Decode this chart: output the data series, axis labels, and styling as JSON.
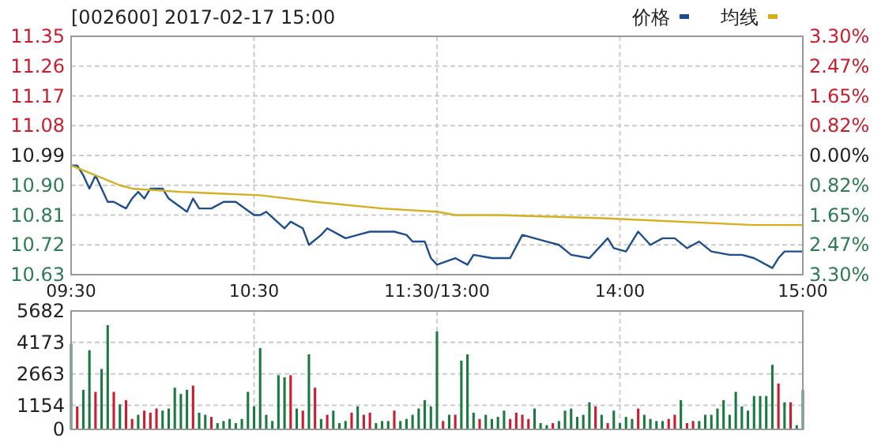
{
  "chart_data": [
    {
      "type": "line",
      "title": "[002600] 2017-02-17 15:00",
      "legend": "top right",
      "grid": true,
      "line_style": "solid",
      "categories": [
        "09:30",
        null,
        null,
        null,
        null,
        null,
        null,
        null,
        null,
        null,
        null,
        null,
        null,
        null,
        null,
        null,
        null,
        null,
        null,
        null,
        null,
        null,
        null,
        null,
        null,
        null,
        null,
        null,
        null,
        null,
        "10:30",
        null,
        null,
        null,
        null,
        null,
        null,
        null,
        null,
        null,
        null,
        null,
        null,
        null,
        null,
        null,
        null,
        null,
        null,
        null,
        null,
        null,
        null,
        null,
        null,
        null,
        null,
        null,
        null,
        null,
        "11:30/13:00",
        null,
        null,
        null,
        null,
        null,
        null,
        null,
        null,
        null,
        null,
        null,
        null,
        null,
        null,
        null,
        null,
        null,
        null,
        null,
        null,
        null,
        null,
        null,
        null,
        null,
        null,
        null,
        null,
        null,
        "14:00",
        null,
        null,
        null,
        null,
        null,
        null,
        null,
        null,
        null,
        null,
        null,
        null,
        null,
        null,
        null,
        null,
        null,
        null,
        null,
        null,
        null,
        null,
        null,
        null,
        null,
        null,
        null,
        null,
        null,
        "15:00"
      ],
      "ylim": [
        10.63,
        11.35
      ],
      "yticks": [
        10.63,
        10.72,
        10.81,
        {
          "value": 10.9,
          "label": "10.90"
        },
        10.99,
        11.08,
        11.17,
        11.26,
        11.35
      ],
      "y2lim": [
        -3.3,
        3.3
      ],
      "y2ticks": [
        {
          "value": -3.3,
          "label": "3.30%"
        },
        {
          "value": -2.47,
          "label": "2.47%"
        },
        {
          "value": -1.65,
          "label": "1.65%"
        },
        {
          "value": -0.82,
          "label": "0.82%"
        },
        {
          "value": 0,
          "label": "0.00%"
        },
        {
          "value": 0.82,
          "label": "0.82%"
        },
        {
          "value": 1.65,
          "label": "1.65%"
        },
        {
          "value": 2.47,
          "label": "2.47%"
        },
        {
          "value": 3.3,
          "label": "3.30%"
        }
      ],
      "series": [
        {
          "name": "价格",
          "color": "#1f4e8c",
          "values": [
            10.96,
            10.96,
            10.93,
            10.89,
            10.93,
            10.89,
            10.85,
            10.85,
            null,
            10.83,
            10.86,
            10.88,
            10.86,
            10.89,
            null,
            10.89,
            10.86,
            null,
            null,
            10.82,
            10.86,
            10.83,
            null,
            10.83,
            null,
            10.85,
            null,
            10.85,
            null,
            null,
            10.81,
            10.81,
            10.82,
            null,
            null,
            10.77,
            10.79,
            null,
            10.77,
            10.72,
            null,
            10.75,
            10.77,
            null,
            10.75,
            10.74,
            null,
            10.75,
            null,
            10.76,
            null,
            null,
            null,
            10.76,
            null,
            10.75,
            10.73,
            null,
            10.73,
            10.68,
            10.66,
            null,
            null,
            10.68,
            null,
            10.66,
            10.69,
            null,
            null,
            10.68,
            null,
            null,
            10.68,
            null,
            10.75,
            null,
            null,
            null,
            10.73,
            null,
            10.72,
            null,
            10.69,
            null,
            null,
            10.68,
            null,
            null,
            10.74,
            10.71,
            null,
            10.7,
            null,
            10.76,
            null,
            10.72,
            null,
            10.74,
            null,
            10.74,
            null,
            10.71,
            null,
            10.73,
            null,
            10.7,
            null,
            null,
            10.69,
            null,
            10.69,
            null,
            10.68,
            null,
            null,
            10.65,
            10.68,
            10.7,
            null,
            null,
            10.7
          ]
        },
        {
          "name": "均线",
          "color": "#d4b020",
          "values": [
            10.96,
            null,
            null,
            null,
            10.93,
            null,
            null,
            null,
            10.9,
            null,
            10.89,
            null,
            null,
            null,
            null,
            null,
            null,
            null,
            10.88,
            null,
            null,
            null,
            null,
            null,
            null,
            null,
            null,
            null,
            null,
            null,
            null,
            10.87,
            null,
            null,
            null,
            null,
            null,
            null,
            null,
            null,
            10.85,
            null,
            null,
            null,
            null,
            null,
            null,
            null,
            null,
            null,
            null,
            10.83,
            null,
            null,
            null,
            null,
            null,
            null,
            null,
            null,
            10.82,
            null,
            null,
            10.81,
            null,
            null,
            null,
            null,
            null,
            null,
            10.81,
            null,
            null,
            null,
            null,
            null,
            null,
            null,
            null,
            null,
            null,
            null,
            null,
            null,
            null,
            null,
            null,
            null,
            10.8,
            null,
            null,
            null,
            null,
            null,
            null,
            null,
            null,
            null,
            null,
            null,
            null,
            null,
            null,
            null,
            null,
            null,
            null,
            null,
            null,
            null,
            null,
            null,
            10.78,
            null,
            null,
            null,
            null,
            null,
            null,
            null,
            10.78
          ]
        }
      ]
    },
    {
      "type": "bar",
      "grid": true,
      "tick_labels": "y",
      "categories": [
        null,
        null,
        null,
        null,
        null,
        null,
        null,
        null,
        null,
        null,
        null,
        null,
        null,
        null,
        null,
        null,
        null,
        null,
        null,
        null,
        null,
        null,
        null,
        null,
        null,
        null,
        null,
        null,
        null,
        null,
        null,
        null,
        null,
        null,
        null,
        null,
        null,
        null,
        null,
        null,
        null,
        null,
        null,
        null,
        null,
        null,
        null,
        null,
        null,
        null,
        null,
        null,
        null,
        null,
        null,
        null,
        null,
        null,
        null,
        null,
        null,
        null,
        null,
        null,
        null,
        null,
        null,
        null,
        null,
        null,
        null,
        null,
        null,
        null,
        null,
        null,
        null,
        null,
        null,
        null,
        null,
        null,
        null,
        null,
        null,
        null,
        null,
        null,
        null,
        null,
        null,
        null,
        null,
        null,
        null,
        null,
        null,
        null,
        null,
        null,
        null,
        null,
        null,
        null,
        null,
        null,
        null,
        null,
        null,
        null,
        null,
        null,
        null,
        null,
        null,
        null,
        null,
        null,
        null,
        null,
        null
      ],
      "ylim": [
        0,
        5682
      ],
      "yticks": [
        0,
        1154,
        2663,
        4173,
        5682
      ],
      "values": [
        4100,
        1100,
        1900,
        3800,
        1800,
        2900,
        5000,
        1800,
        1200,
        1400,
        500,
        700,
        900,
        800,
        1000,
        900,
        1000,
        2000,
        1700,
        1900,
        2100,
        800,
        700,
        600,
        300,
        400,
        500,
        300,
        500,
        1800,
        1100,
        3900,
        700,
        400,
        2600,
        2500,
        2600,
        1000,
        900,
        3600,
        2000,
        500,
        700,
        900,
        300,
        400,
        800,
        1100,
        700,
        800,
        300,
        400,
        400,
        900,
        400,
        500,
        700,
        1000,
        1400,
        1100,
        4700,
        400,
        700,
        700,
        3300,
        3600,
        800,
        500,
        700,
        500,
        600,
        900,
        500,
        800,
        700,
        500,
        1000,
        300,
        200,
        300,
        400,
        900,
        1000,
        600,
        700,
        1300,
        1100,
        700,
        300,
        900,
        300,
        600,
        500,
        1000,
        700,
        500,
        400,
        400,
        500,
        700,
        1400,
        300,
        400,
        400,
        700,
        700,
        1000,
        1400,
        700,
        1800,
        1100,
        900,
        1600,
        1600,
        1600,
        3100,
        2200,
        1300,
        1300,
        200,
        1900
      ],
      "colors": [
        "#1a7a40",
        "#c81e2e",
        "#1a7a40",
        "#1a7a40",
        "#c81e2e",
        "#1a7a40",
        "#1a7a40",
        "#c81e2e",
        "#1a7a40",
        "#c81e2e",
        "#c81e2e",
        "#1a7a40",
        "#c81e2e",
        "#c81e2e",
        "#c81e2e",
        "#1a7a40",
        "#1a7a40",
        "#1a7a40",
        "#1a7a40",
        "#1a7a40",
        "#c81e2e",
        "#1a7a40",
        "#1a7a40",
        "#c81e2e",
        "#1a7a40",
        "#1a7a40",
        "#1a7a40",
        "#1a7a40",
        "#1a7a40",
        "#1a7a40",
        "#1a7a40",
        "#1a7a40",
        "#1a7a40",
        "#1a7a40",
        "#1a7a40",
        "#1a7a40",
        "#c81e2e",
        "#1a7a40",
        "#c81e2e",
        "#1a7a40",
        "#c81e2e",
        "#1a7a40",
        "#c81e2e",
        "#1a7a40",
        "#1a7a40",
        "#1a7a40",
        "#c81e2e",
        "#1a7a40",
        "#c81e2e",
        "#c81e2e",
        "#1a7a40",
        "#1a7a40",
        "#1a7a40",
        "#c81e2e",
        "#1a7a40",
        "#1a7a40",
        "#1a7a40",
        "#1a7a40",
        "#1a7a40",
        "#1a7a40",
        "#1a7a40",
        "#c81e2e",
        "#1a7a40",
        "#c81e2e",
        "#1a7a40",
        "#1a7a40",
        "#1a7a40",
        "#c81e2e",
        "#1a7a40",
        "#1a7a40",
        "#1a7a40",
        "#1a7a40",
        "#c81e2e",
        "#c81e2e",
        "#c81e2e",
        "#c81e2e",
        "#1a7a40",
        "#1a7a40",
        "#1a7a40",
        "#c81e2e",
        "#1a7a40",
        "#1a7a40",
        "#1a7a40",
        "#1a7a40",
        "#1a7a40",
        "#1a7a40",
        "#c81e2e",
        "#1a7a40",
        "#c81e2e",
        "#1a7a40",
        "#1a7a40",
        "#1a7a40",
        "#1a7a40",
        "#c81e2e",
        "#1a7a40",
        "#1a7a40",
        "#1a7a40",
        "#1a7a40",
        "#c81e2e",
        "#c81e2e",
        "#1a7a40",
        "#c81e2e",
        "#c81e2e",
        "#1a7a40",
        "#1a7a40",
        "#1a7a40",
        "#1a7a40",
        "#1a7a40",
        "#1a7a40",
        "#1a7a40",
        "#1a7a40",
        "#1a7a40",
        "#1a7a40",
        "#1a7a40",
        "#1a7a40",
        "#1a7a40",
        "#c81e2e",
        "#1a7a40",
        "#c81e2e",
        "#1a7a40",
        "#1a7a40"
      ]
    }
  ]
}
